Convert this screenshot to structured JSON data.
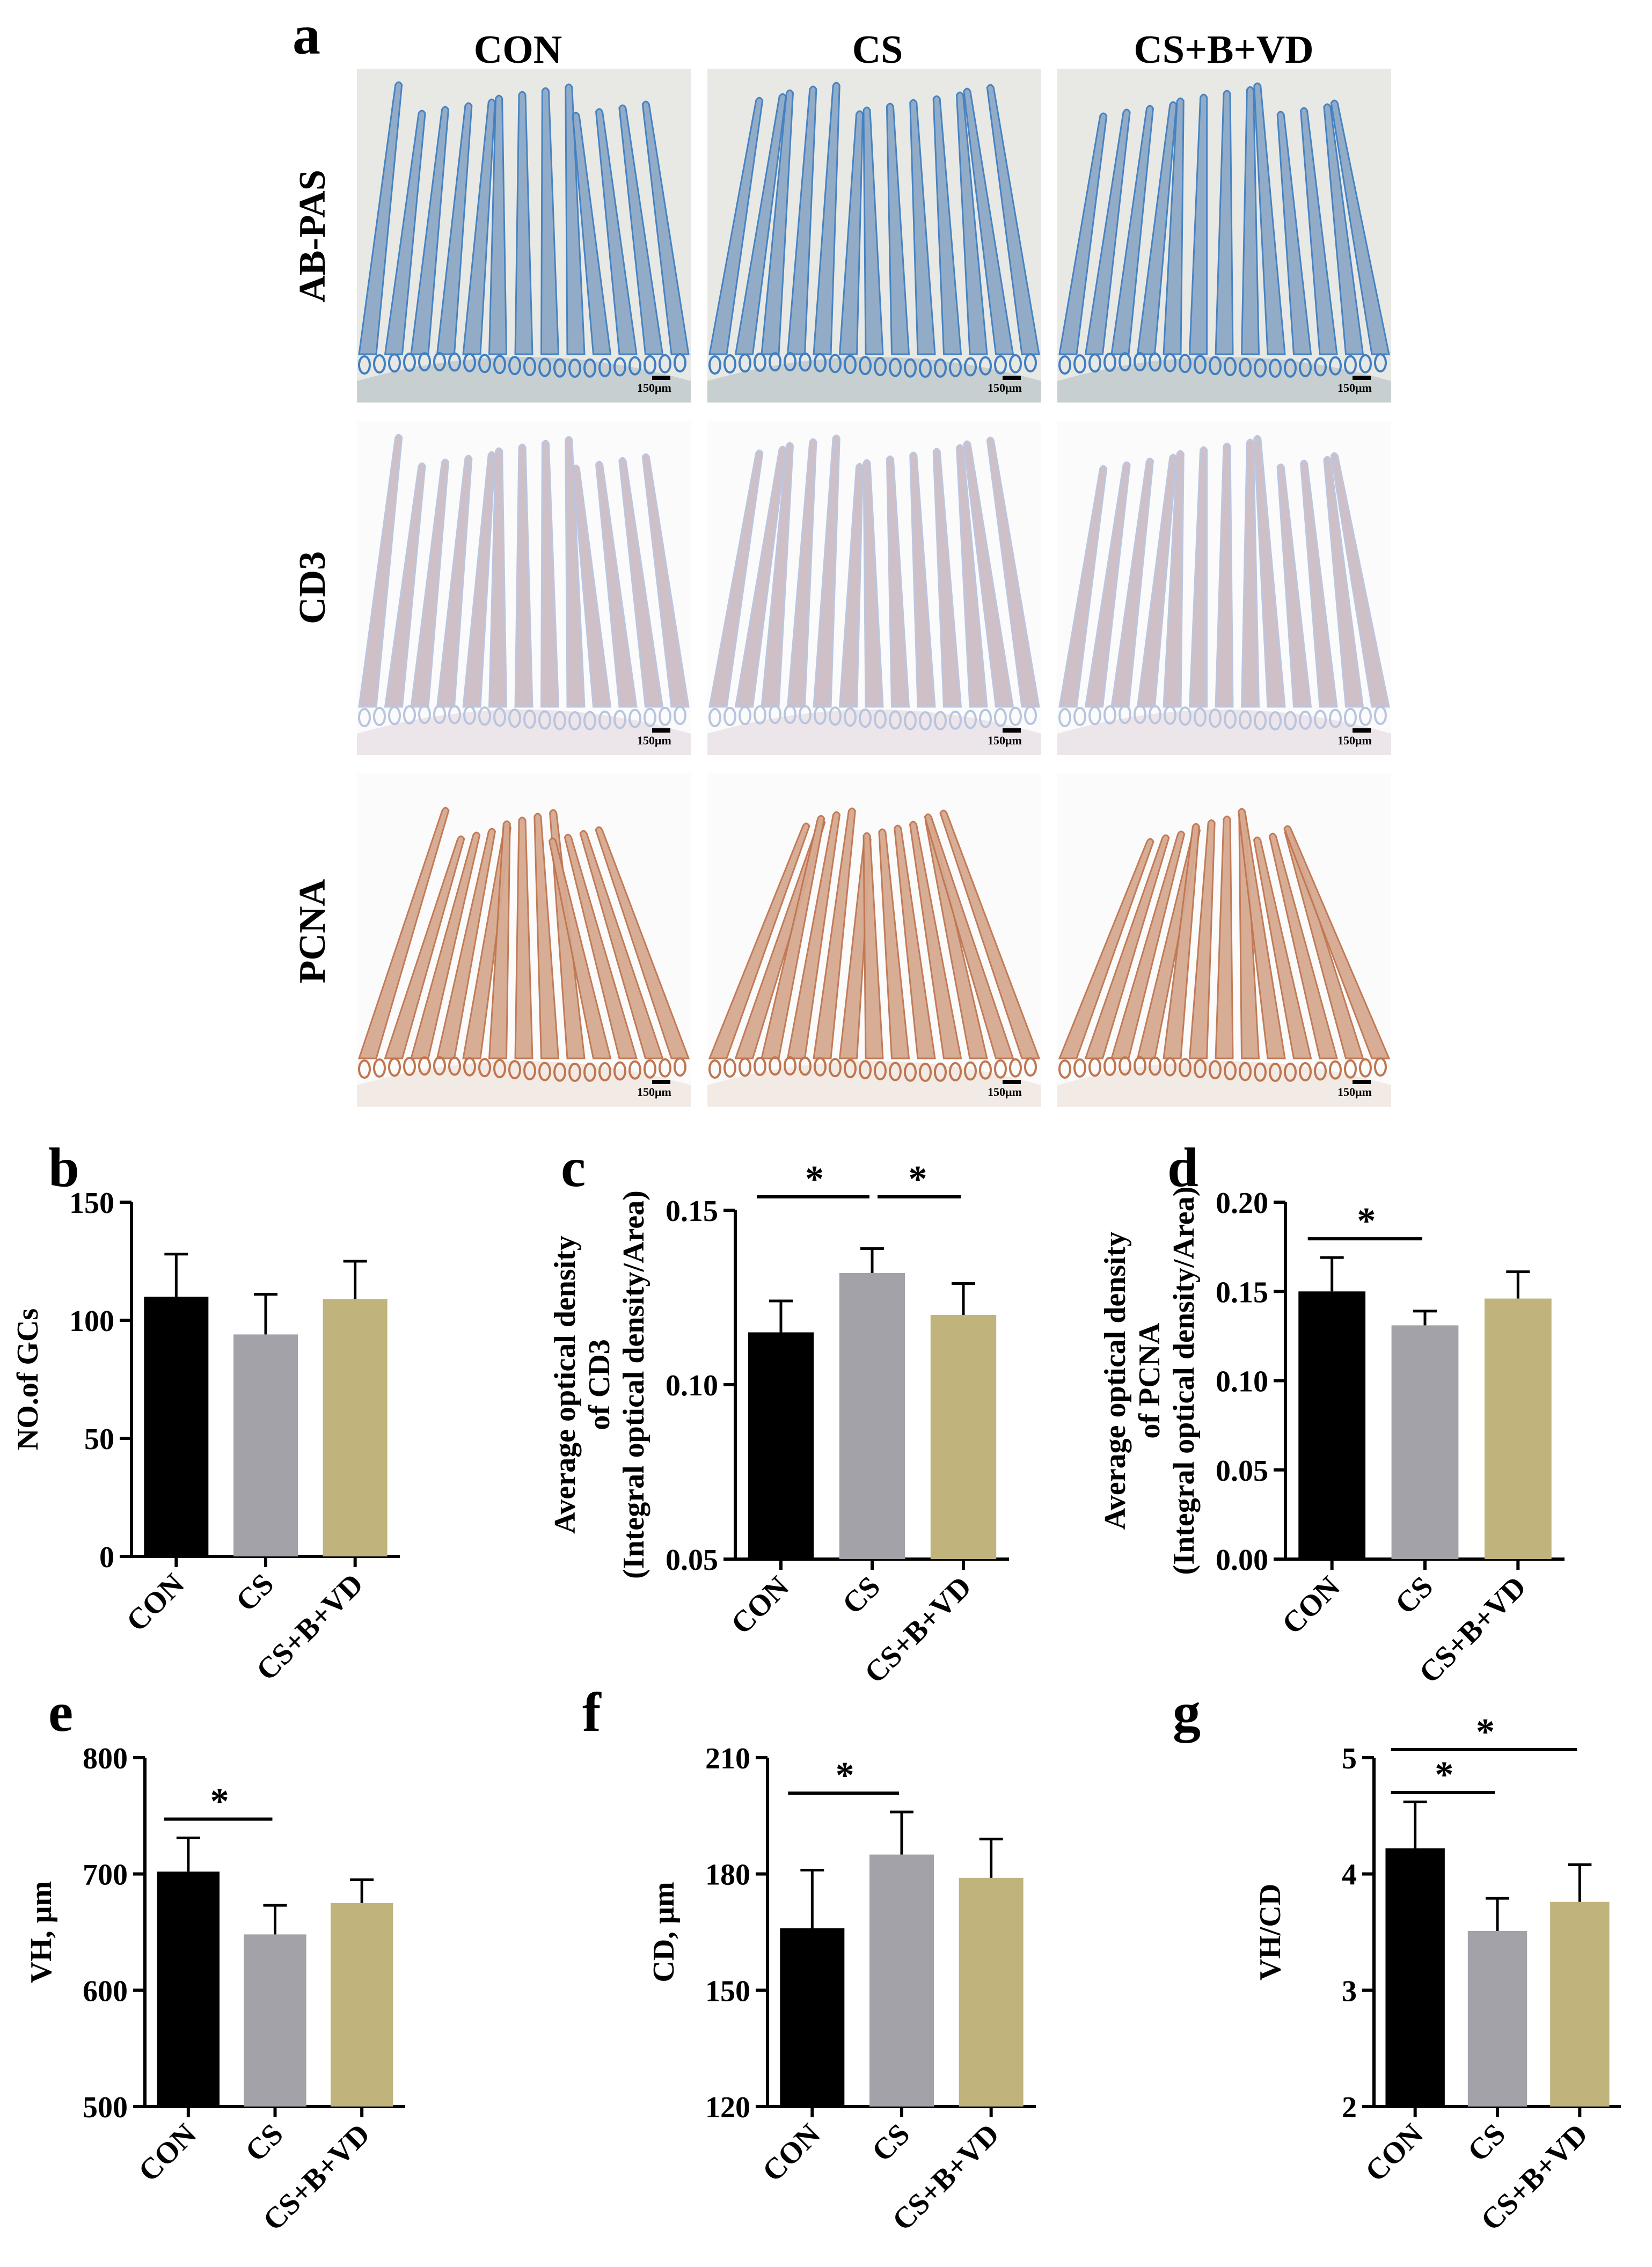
{
  "figure": {
    "panel_a": {
      "letter": "a",
      "columns": [
        "CON",
        "CS",
        "CS+B+VD"
      ],
      "rows": [
        {
          "label": "AB-PAS",
          "bg": "#c8cfd0",
          "villus": "#8ea9c6",
          "crypt": "#3f7ec2",
          "gap": "#e8e9e5",
          "scale": "150μm"
        },
        {
          "label": "CD3",
          "bg": "#ece6ea",
          "villus": "#cdbcc5",
          "crypt": "#b9c4de",
          "gap": "#fbfbfb",
          "scale": "150μm"
        },
        {
          "label": "PCNA",
          "bg": "#f2eae4",
          "villus": "#d6a990",
          "crypt": "#c0754f",
          "gap": "#fbfbfb",
          "scale": "150μm"
        }
      ]
    }
  },
  "chart_data": [
    {
      "letter": "b",
      "type": "bar",
      "categories": [
        "CON",
        "CS",
        "CS+B+VD"
      ],
      "values": [
        110,
        94,
        109
      ],
      "errors": [
        18,
        17,
        16
      ],
      "ylabel": [
        "NO.of GCs"
      ],
      "ylim": [
        0,
        150
      ],
      "ticks": [
        "0",
        "50",
        "100",
        "150"
      ],
      "significance": []
    },
    {
      "letter": "c",
      "type": "bar",
      "categories": [
        "CON",
        "CS",
        "CS+B+VD"
      ],
      "values": [
        0.115,
        0.132,
        0.12
      ],
      "errors": [
        0.009,
        0.007,
        0.009
      ],
      "ylabel": [
        "Average optical density",
        "of CD3",
        "(Integral optical density/Area)"
      ],
      "ylim": [
        0.05,
        0.15
      ],
      "ticks": [
        "0.05",
        "0.10",
        "0.15"
      ],
      "significance": [
        {
          "from": "CON",
          "to": "CS",
          "label": "*"
        },
        {
          "from": "CS",
          "to": "CS+B+VD",
          "label": "*"
        }
      ]
    },
    {
      "letter": "d",
      "type": "bar",
      "categories": [
        "CON",
        "CS",
        "CS+B+VD"
      ],
      "values": [
        0.15,
        0.131,
        0.146
      ],
      "errors": [
        0.019,
        0.008,
        0.015
      ],
      "ylabel": [
        "Average optical density",
        "of PCNA",
        "(Integral optical density/Area)"
      ],
      "ylim": [
        0,
        0.2
      ],
      "ticks": [
        "0.00",
        "0.05",
        "0.10",
        "0.15",
        "0.20"
      ],
      "significance": [
        {
          "from": "CON",
          "to": "CS",
          "label": "*"
        }
      ]
    },
    {
      "letter": "e",
      "type": "bar",
      "categories": [
        "CON",
        "CS",
        "CS+B+VD"
      ],
      "values": [
        702,
        648,
        675
      ],
      "errors": [
        29,
        25,
        20
      ],
      "ylabel": [
        "VH, μm"
      ],
      "ylim": [
        500,
        800
      ],
      "ticks": [
        "500",
        "600",
        "700",
        "800"
      ],
      "significance": [
        {
          "from": "CON",
          "to": "CS",
          "label": "*"
        }
      ]
    },
    {
      "letter": "f",
      "type": "bar",
      "categories": [
        "CON",
        "CS",
        "CS+B+VD"
      ],
      "values": [
        166,
        185,
        179
      ],
      "errors": [
        15,
        11,
        10
      ],
      "ylabel": [
        "CD, μm"
      ],
      "ylim": [
        120,
        210
      ],
      "ticks": [
        "120",
        "150",
        "180",
        "210"
      ],
      "significance": [
        {
          "from": "CON",
          "to": "CS",
          "label": "*"
        }
      ]
    },
    {
      "letter": "g",
      "type": "bar",
      "categories": [
        "CON",
        "CS",
        "CS+B+VD"
      ],
      "values": [
        4.22,
        3.51,
        3.76
      ],
      "errors": [
        0.4,
        0.28,
        0.32
      ],
      "ylabel": [
        "VH/CD"
      ],
      "ylim": [
        2,
        5
      ],
      "ticks": [
        "2",
        "3",
        "4",
        "5"
      ],
      "significance": [
        {
          "from": "CON",
          "to": "CS",
          "label": "*"
        },
        {
          "from": "CON",
          "to": "CS+B+VD",
          "label": "*"
        }
      ]
    }
  ],
  "colors": {
    "CON": "#000000",
    "CS": "#a3a2a9",
    "CS+B+VD": "#c0b47c"
  }
}
